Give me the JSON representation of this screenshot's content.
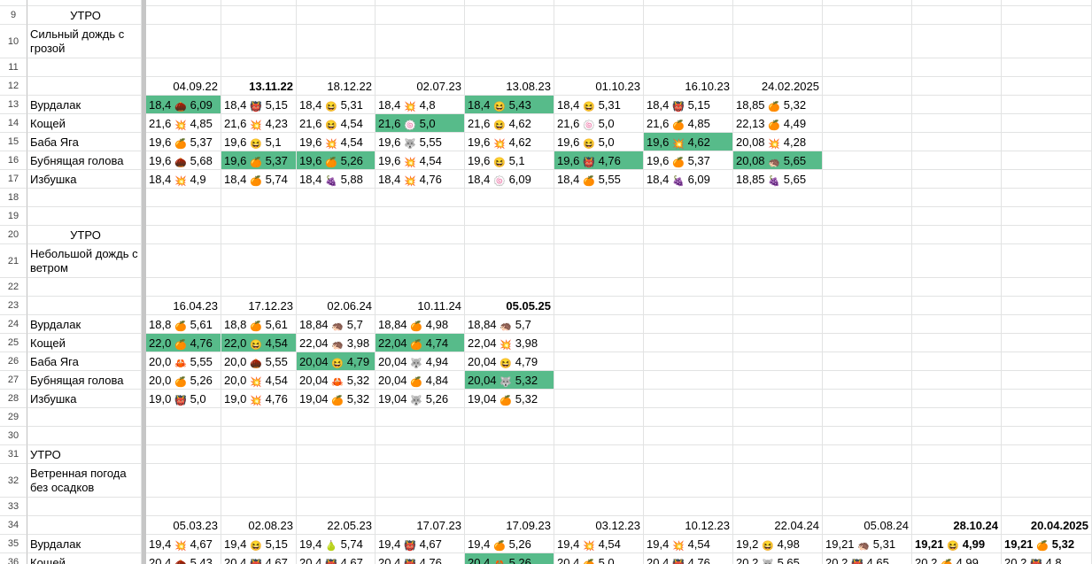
{
  "emoji": {
    "chestnut": "🌰",
    "devil": "👹",
    "grin": "😆",
    "burst": "💥",
    "orange": "🍊",
    "wolf": "🐺",
    "grapes": "🍇",
    "radish": "🍥",
    "hedgehog": "🦔",
    "crab": "🦀",
    "pear": "🍐"
  },
  "highlight_color": "#57bb8a",
  "sections": [
    {
      "label_row": 9,
      "label": "УТРО",
      "label_centered": true,
      "weather_row": 10,
      "weather": "Сильный дождь с грозой",
      "blank_rows": [
        11
      ],
      "date_row": 12,
      "dates": [
        {
          "t": "04.09.22",
          "bold": false
        },
        {
          "t": "13.11.22",
          "bold": true
        },
        {
          "t": "18.12.22",
          "bold": false
        },
        {
          "t": "02.07.23",
          "bold": false
        },
        {
          "t": "13.08.23",
          "bold": false
        },
        {
          "t": "01.10.23",
          "bold": false
        },
        {
          "t": "16.10.23",
          "bold": false
        },
        {
          "t": "24.02.2025",
          "bold": false
        }
      ],
      "rows": [
        {
          "num": 13,
          "name": "Вурдалак",
          "cells": [
            {
              "a": "18,4",
              "e": "chestnut",
              "b": "6,09",
              "hl": true
            },
            {
              "a": "18,4",
              "e": "devil",
              "b": "5,15"
            },
            {
              "a": "18,4",
              "e": "grin",
              "b": "5,31"
            },
            {
              "a": "18,4",
              "e": "burst",
              "b": "4,8"
            },
            {
              "a": "18,4",
              "e": "grin",
              "b": "5,43",
              "hl": true
            },
            {
              "a": "18,4",
              "e": "grin",
              "b": "5,31"
            },
            {
              "a": "18,4",
              "e": "devil",
              "b": "5,15"
            },
            {
              "a": "18,85",
              "e": "orange",
              "b": "5,32"
            }
          ]
        },
        {
          "num": 14,
          "name": "Кощей",
          "cells": [
            {
              "a": "21,6",
              "e": "burst",
              "b": "4,85"
            },
            {
              "a": "21,6",
              "e": "burst",
              "b": "4,23"
            },
            {
              "a": "21,6",
              "e": "grin",
              "b": "4,54"
            },
            {
              "a": "21,6",
              "e": "radish",
              "b": "5,0",
              "hl": true
            },
            {
              "a": "21,6",
              "e": "grin",
              "b": "4,62"
            },
            {
              "a": "21,6",
              "e": "radish",
              "b": "5,0"
            },
            {
              "a": "21,6",
              "e": "orange",
              "b": "4,85"
            },
            {
              "a": "22,13",
              "e": "orange",
              "b": "4,49"
            }
          ]
        },
        {
          "num": 15,
          "name": "Баба Яга",
          "cells": [
            {
              "a": "19,6",
              "e": "orange",
              "b": "5,37"
            },
            {
              "a": "19,6",
              "e": "grin",
              "b": "5,1"
            },
            {
              "a": "19,6",
              "e": "burst",
              "b": "4,54"
            },
            {
              "a": "19,6",
              "e": "wolf",
              "b": "5,55"
            },
            {
              "a": "19,6",
              "e": "burst",
              "b": "4,62"
            },
            {
              "a": "19,6",
              "e": "grin",
              "b": "5,0"
            },
            {
              "a": "19,6",
              "e": "burst",
              "b": "4,62",
              "hl": true
            },
            {
              "a": "20,08",
              "e": "burst",
              "b": "4,28"
            }
          ]
        },
        {
          "num": 16,
          "name": "Бубнящая голова",
          "cells": [
            {
              "a": "19,6",
              "e": "chestnut",
              "b": "5,68"
            },
            {
              "a": "19,6",
              "e": "orange",
              "b": "5,37",
              "hl": true
            },
            {
              "a": "19,6",
              "e": "orange",
              "b": "5,26",
              "hl": true
            },
            {
              "a": "19,6",
              "e": "burst",
              "b": "4,54"
            },
            {
              "a": "19,6",
              "e": "grin",
              "b": "5,1"
            },
            {
              "a": "19,6",
              "e": "devil",
              "b": "4,76",
              "hl": true
            },
            {
              "a": "19,6",
              "e": "orange",
              "b": "5,37"
            },
            {
              "a": "20,08",
              "e": "hedgehog",
              "b": "5,65",
              "hl": true
            }
          ]
        },
        {
          "num": 17,
          "name": "Избушка",
          "cells": [
            {
              "a": "18,4",
              "e": "burst",
              "b": "4,9"
            },
            {
              "a": "18,4",
              "e": "orange",
              "b": "5,74"
            },
            {
              "a": "18,4",
              "e": "grapes",
              "b": "5,88"
            },
            {
              "a": "18,4",
              "e": "burst",
              "b": "4,76"
            },
            {
              "a": "18,4",
              "e": "radish",
              "b": "6,09"
            },
            {
              "a": "18,4",
              "e": "orange",
              "b": "5,55"
            },
            {
              "a": "18,4",
              "e": "grapes",
              "b": "6,09"
            },
            {
              "a": "18,85",
              "e": "grapes",
              "b": "5,65"
            }
          ]
        }
      ],
      "trailing_blank_rows": [
        18,
        19
      ]
    },
    {
      "label_row": 20,
      "label": "УТРО",
      "label_centered": true,
      "weather_row": 21,
      "weather": "Небольшой дождь с ветром",
      "blank_rows": [
        22
      ],
      "date_row": 23,
      "dates": [
        {
          "t": "16.04.23",
          "bold": false
        },
        {
          "t": "17.12.23",
          "bold": false
        },
        {
          "t": "02.06.24",
          "bold": false
        },
        {
          "t": "10.11.24",
          "bold": false
        },
        {
          "t": "05.05.25",
          "bold": true
        }
      ],
      "rows": [
        {
          "num": 24,
          "name": "Вурдалак",
          "cells": [
            {
              "a": "18,8",
              "e": "orange",
              "b": "5,61"
            },
            {
              "a": "18,8",
              "e": "orange",
              "b": "5,61"
            },
            {
              "a": "18,84",
              "e": "hedgehog",
              "b": "5,7"
            },
            {
              "a": "18,84",
              "e": "orange",
              "b": "4,98"
            },
            {
              "a": "18,84",
              "e": "hedgehog",
              "b": "5,7"
            }
          ]
        },
        {
          "num": 25,
          "name": "Кощей",
          "cells": [
            {
              "a": "22,0",
              "e": "orange",
              "b": "4,76",
              "hl": true
            },
            {
              "a": "22,0",
              "e": "grin",
              "b": "4,54",
              "hl": true
            },
            {
              "a": "22,04",
              "e": "hedgehog",
              "b": "3,98"
            },
            {
              "a": "22,04",
              "e": "orange",
              "b": "4,74",
              "hl": true
            },
            {
              "a": "22,04",
              "e": "burst",
              "b": "3,98"
            }
          ]
        },
        {
          "num": 26,
          "name": "Баба Яга",
          "cells": [
            {
              "a": "20,0",
              "e": "crab",
              "b": "5,55"
            },
            {
              "a": "20,0",
              "e": "chestnut",
              "b": "5,55"
            },
            {
              "a": "20,04",
              "e": "grin",
              "b": "4,79",
              "hl": true
            },
            {
              "a": "20,04",
              "e": "wolf",
              "b": "4,94"
            },
            {
              "a": "20,04",
              "e": "grin",
              "b": "4,79"
            }
          ]
        },
        {
          "num": 27,
          "name": "Бубнящая голова",
          "cells": [
            {
              "a": "20,0",
              "e": "orange",
              "b": "5,26"
            },
            {
              "a": "20,0",
              "e": "burst",
              "b": "4,54"
            },
            {
              "a": "20,04",
              "e": "crab",
              "b": "5,32"
            },
            {
              "a": "20,04",
              "e": "orange",
              "b": "4,84"
            },
            {
              "a": "20,04",
              "e": "wolf",
              "b": "5,32",
              "hl": true
            }
          ]
        },
        {
          "num": 28,
          "name": "Избушка",
          "cells": [
            {
              "a": "19,0",
              "e": "devil",
              "b": "5,0"
            },
            {
              "a": "19,0",
              "e": "burst",
              "b": "4,76"
            },
            {
              "a": "19,04",
              "e": "orange",
              "b": "5,32"
            },
            {
              "a": "19,04",
              "e": "wolf",
              "b": "5,26"
            },
            {
              "a": "19,04",
              "e": "orange",
              "b": "5,32"
            }
          ]
        }
      ],
      "trailing_blank_rows": [
        29,
        30
      ]
    },
    {
      "label_row": 31,
      "label": "УТРО",
      "label_centered": false,
      "weather_row": 32,
      "weather": "Ветренная погода без осадков",
      "blank_rows": [
        33
      ],
      "date_row": 34,
      "dates": [
        {
          "t": "05.03.23",
          "bold": false
        },
        {
          "t": "02.08.23",
          "bold": false
        },
        {
          "t": "22.05.23",
          "bold": false
        },
        {
          "t": "17.07.23",
          "bold": false
        },
        {
          "t": "17.09.23",
          "bold": false
        },
        {
          "t": "03.12.23",
          "bold": false
        },
        {
          "t": "10.12.23",
          "bold": false
        },
        {
          "t": "22.04.24",
          "bold": false
        },
        {
          "t": "05.08.24",
          "bold": false
        },
        {
          "t": "28.10.24",
          "bold": true
        },
        {
          "t": "20.04.2025",
          "bold": true
        }
      ],
      "rows": [
        {
          "num": 35,
          "name": "Вурдалак",
          "cells": [
            {
              "a": "19,4",
              "e": "burst",
              "b": "4,67"
            },
            {
              "a": "19,4",
              "e": "grin",
              "b": "5,15"
            },
            {
              "a": "19,4",
              "e": "pear",
              "b": "5,74"
            },
            {
              "a": "19,4",
              "e": "devil",
              "b": "4,67"
            },
            {
              "a": "19,4",
              "e": "orange",
              "b": "5,26"
            },
            {
              "a": "19,4",
              "e": "burst",
              "b": "4,54"
            },
            {
              "a": "19,4",
              "e": "burst",
              "b": "4,54"
            },
            {
              "a": "19,2",
              "e": "grin",
              "b": "4,98"
            },
            {
              "a": "19,21",
              "e": "hedgehog",
              "b": "5,31"
            },
            {
              "a": "19,21",
              "e": "grin",
              "b": "4,99",
              "bold": true
            },
            {
              "a": "19,21",
              "e": "orange",
              "b": "5,32",
              "bold": true
            }
          ]
        },
        {
          "num": 36,
          "name": "Кощей",
          "cells": [
            {
              "a": "20,4",
              "e": "chestnut",
              "b": "5,43"
            },
            {
              "a": "20,4",
              "e": "devil",
              "b": "4,67"
            },
            {
              "a": "20,4",
              "e": "devil",
              "b": "4,67"
            },
            {
              "a": "20,4",
              "e": "devil",
              "b": "4,76"
            },
            {
              "a": "20,4",
              "e": "crab",
              "b": "5,26",
              "hl": true
            },
            {
              "a": "20,4",
              "e": "orange",
              "b": "5,0"
            },
            {
              "a": "20,4",
              "e": "devil",
              "b": "4,76"
            },
            {
              "a": "20,2",
              "e": "wolf",
              "b": "5,65"
            },
            {
              "a": "20,2",
              "e": "devil",
              "b": "4,65"
            },
            {
              "a": "20,2",
              "e": "orange",
              "b": "4,99"
            },
            {
              "a": "20,2",
              "e": "devil",
              "b": "4,8"
            }
          ]
        }
      ]
    }
  ]
}
